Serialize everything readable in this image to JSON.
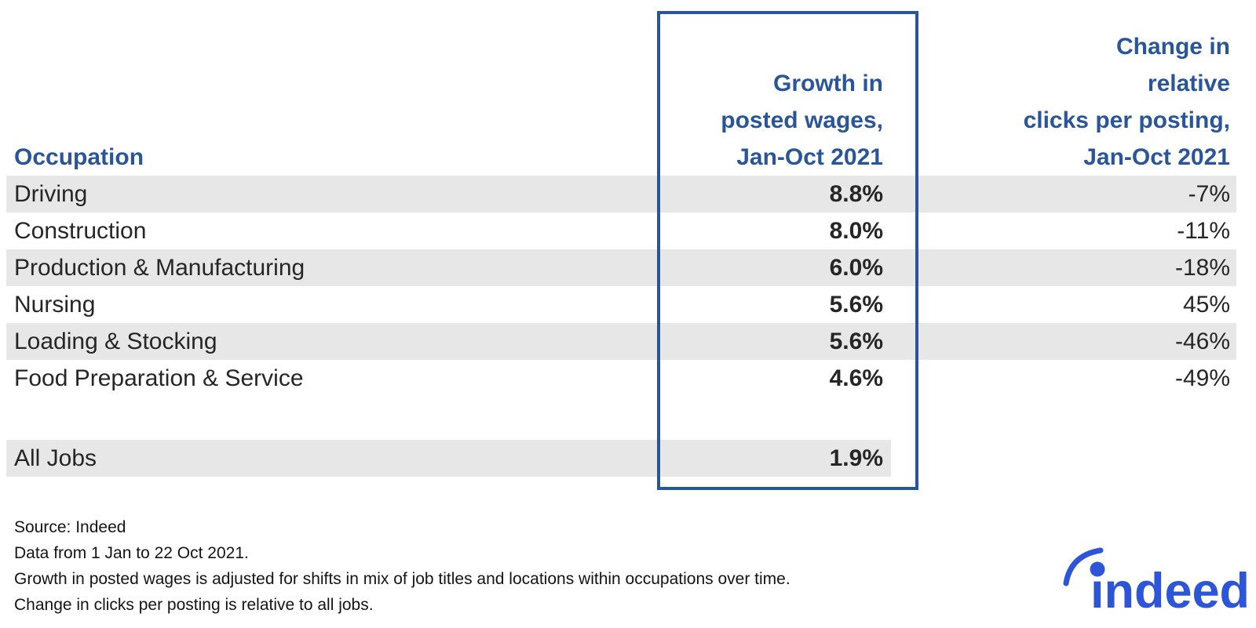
{
  "table": {
    "occupation_header": "Occupation",
    "wage_header_lines": [
      "Growth in",
      "posted wages,",
      "Jan-Oct 2021"
    ],
    "clicks_header_lines": [
      "Change in",
      "relative",
      "clicks per posting,",
      "Jan-Oct 2021"
    ]
  },
  "chart_data": {
    "type": "table",
    "columns": [
      "Occupation",
      "Growth in posted wages, Jan-Oct 2021",
      "Change in relative clicks per posting, Jan-Oct 2021"
    ],
    "rows": [
      {
        "occupation": "Driving",
        "wage_growth_pct": 8.8,
        "wage_growth_display": "8.8%",
        "clicks_change_pct": -7,
        "clicks_change_display": "-7%"
      },
      {
        "occupation": "Construction",
        "wage_growth_pct": 8.0,
        "wage_growth_display": "8.0%",
        "clicks_change_pct": -11,
        "clicks_change_display": "-11%"
      },
      {
        "occupation": "Production & Manufacturing",
        "wage_growth_pct": 6.0,
        "wage_growth_display": "6.0%",
        "clicks_change_pct": -18,
        "clicks_change_display": "-18%"
      },
      {
        "occupation": "Nursing",
        "wage_growth_pct": 5.6,
        "wage_growth_display": "5.6%",
        "clicks_change_pct": 45,
        "clicks_change_display": "45%"
      },
      {
        "occupation": "Loading & Stocking",
        "wage_growth_pct": 5.6,
        "wage_growth_display": "5.6%",
        "clicks_change_pct": -46,
        "clicks_change_display": "-46%"
      },
      {
        "occupation": "Food Preparation & Service",
        "wage_growth_pct": 4.6,
        "wage_growth_display": "4.6%",
        "clicks_change_pct": -49,
        "clicks_change_display": "-49%"
      }
    ],
    "all_jobs": {
      "occupation": "All Jobs",
      "wage_growth_pct": 1.9,
      "wage_growth_display": "1.9%",
      "clicks_change_pct": null,
      "clicks_change_display": ""
    }
  },
  "footnotes": [
    "Source: Indeed",
    "Data from 1 Jan to 22 Oct 2021.",
    "Growth in posted wages is adjusted for shifts in mix of job titles and locations within occupations over time.",
    "Change in clicks per posting is relative to all jobs."
  ],
  "logo": {
    "wordmark": "ındeed"
  },
  "colors": {
    "header_blue": "#2A5699",
    "logo_blue": "#2C55D8",
    "stripe_gray": "#E7E7E7",
    "body_text": "#262626"
  }
}
